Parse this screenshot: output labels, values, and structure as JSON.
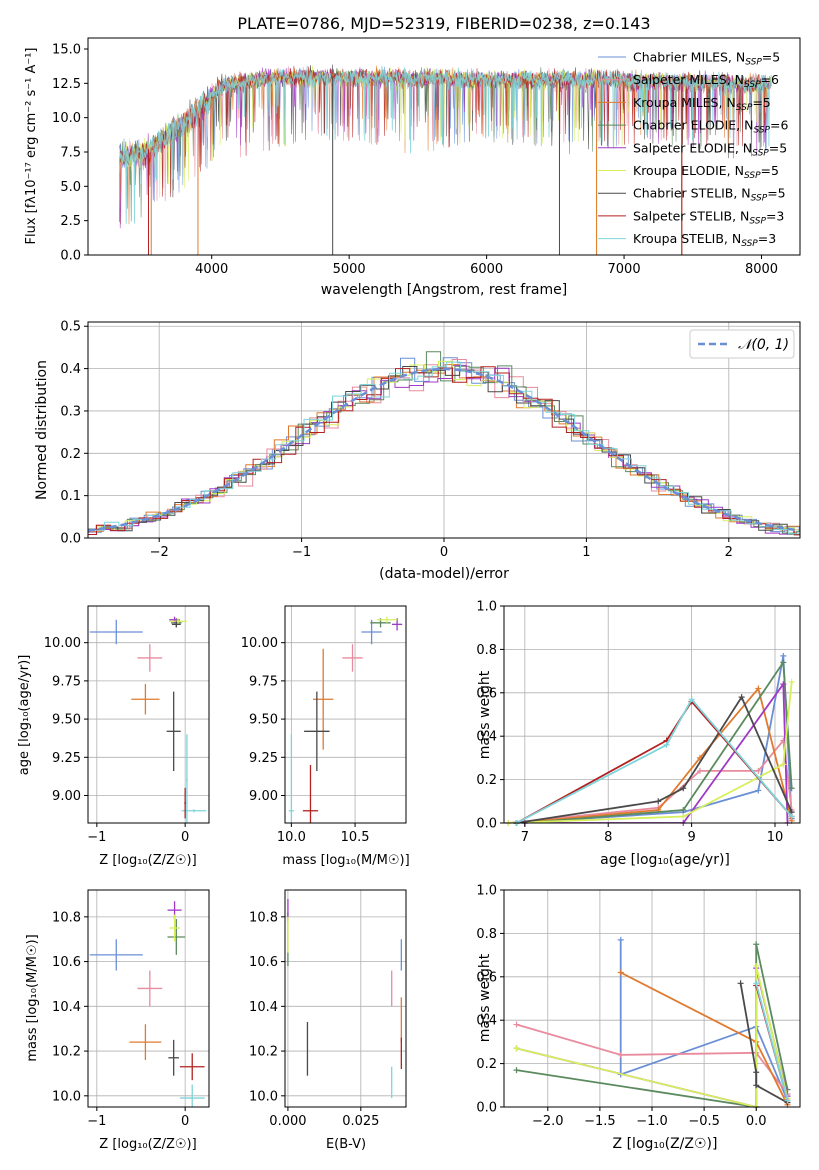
{
  "chart_data": [
    {
      "id": "spectrum",
      "type": "line",
      "title": "PLATE=0786, MJD=52319, FIBERID=0238, z=0.143",
      "xlabel": "wavelength [Angstrom, rest frame]",
      "ylabel": "Flux [fλ10⁻¹⁷ erg cm⁻² s⁻¹ A⁻¹]",
      "xlim": [
        3100,
        8280
      ],
      "ylim": [
        0,
        15.8
      ],
      "xticks": [
        "4000",
        "5000",
        "6000",
        "7000",
        "8000"
      ],
      "yticks": [
        "0.0",
        "2.5",
        "5.0",
        "7.5",
        "10.0",
        "12.5",
        "15.0"
      ],
      "legend_position": "top-right",
      "grid": false,
      "continuum": [
        [
          3330,
          7.2
        ],
        [
          3500,
          7.4
        ],
        [
          3700,
          8.9
        ],
        [
          3900,
          10.5
        ],
        [
          4050,
          12.2
        ],
        [
          4300,
          12.8
        ],
        [
          4700,
          13.0
        ],
        [
          5300,
          12.9
        ],
        [
          6000,
          12.8
        ],
        [
          6700,
          12.8
        ],
        [
          7200,
          12.7
        ],
        [
          7800,
          12.5
        ],
        [
          8070,
          12.4
        ]
      ],
      "series": [
        {
          "name": "Chabrier MILES, N_SSP=5",
          "color": "#6b8fd6"
        },
        {
          "name": "Salpeter MILES, N_SSP=6",
          "color": "#e88b9e"
        },
        {
          "name": "Kroupa MILES, N_SSP=5",
          "color": "#e07a2e"
        },
        {
          "name": "Chabrier ELODIE, N_SSP=6",
          "color": "#5b8a5e"
        },
        {
          "name": "Salpeter ELODIE, N_SSP=5",
          "color": "#a03ac4"
        },
        {
          "name": "Kroupa ELODIE, N_SSP=5",
          "color": "#d6ef5c"
        },
        {
          "name": "Chabrier STELIB, N_SSP=5",
          "color": "#4a4a4a"
        },
        {
          "name": "Salpeter STELIB, N_SSP=3",
          "color": "#b32020"
        },
        {
          "name": "Kroupa STELIB, N_SSP=3",
          "color": "#7fd4da"
        }
      ]
    },
    {
      "id": "residuals",
      "type": "bar",
      "xlabel": "(data-model)/error",
      "ylabel": "Normed distribution",
      "xlim": [
        -2.5,
        2.5
      ],
      "ylim": [
        0,
        0.51
      ],
      "xticks": [
        "−2",
        "−1",
        "0",
        "1",
        "2"
      ],
      "yticks": [
        "0.0",
        "0.1",
        "0.2",
        "0.3",
        "0.4",
        "0.5"
      ],
      "legend_position": "top-right",
      "legend_label": "𝒩(0, 1)",
      "grid": true,
      "bin_width": 0.1
    },
    {
      "id": "age_vs_Z",
      "type": "scatter",
      "xlabel": "Z [log₁₀(Z/Z☉)]",
      "ylabel": "age  [log₁₀(age/yr)]",
      "xlim": [
        -1.1,
        0.27
      ],
      "ylim": [
        8.82,
        10.24
      ],
      "xticks": [
        "−1",
        "0"
      ],
      "yticks": [
        "9.00",
        "9.25",
        "9.50",
        "9.75",
        "10.00"
      ],
      "points": [
        {
          "x": -0.78,
          "y": 10.07,
          "ex": 0.3,
          "ey": 0.08,
          "color": "#6b8fd6"
        },
        {
          "x": -0.4,
          "y": 9.9,
          "ex": 0.14,
          "ey": 0.09,
          "color": "#e88b9e"
        },
        {
          "x": -0.45,
          "y": 9.63,
          "ex": 0.16,
          "ey": 0.1,
          "color": "#e07a2e"
        },
        {
          "x": -0.1,
          "y": 10.13,
          "ex": 0.06,
          "ey": 0.03,
          "color": "#5b8a5e"
        },
        {
          "x": -0.12,
          "y": 10.15,
          "ex": 0.06,
          "ey": 0.02,
          "color": "#a03ac4"
        },
        {
          "x": -0.08,
          "y": 10.14,
          "ex": 0.1,
          "ey": 0.02,
          "color": "#d6ef5c"
        },
        {
          "x": -0.13,
          "y": 9.42,
          "ex": 0.08,
          "ey": 0.26,
          "color": "#4a4a4a"
        },
        {
          "x": -0.1,
          "y": 10.12,
          "ex": 0.05,
          "ey": 0.02,
          "color": "#4a4a4a"
        },
        {
          "x": 0.02,
          "y": 9.1,
          "ex": 0.01,
          "ey": 0.3,
          "color": "#7fd4da"
        },
        {
          "x": 0.1,
          "y": 8.9,
          "ex": 0.14,
          "ey": 0.01,
          "color": "#7fd4da"
        },
        {
          "x": 0.0,
          "y": 8.95,
          "ex": 0.01,
          "ey": 0.1,
          "color": "#b32020"
        }
      ]
    },
    {
      "id": "age_vs_mass",
      "type": "scatter",
      "xlabel": "mass [log₁₀(M/M☉)]",
      "ylabel": "",
      "xlim": [
        9.95,
        10.9
      ],
      "ylim": [
        8.82,
        10.24
      ],
      "xticks": [
        "10.0",
        "10.5"
      ],
      "yticks": [
        "9.00",
        "9.25",
        "9.50",
        "9.75",
        "10.00"
      ],
      "points": [
        {
          "x": 10.63,
          "y": 10.07,
          "ex": 0.08,
          "ey": 0.08,
          "color": "#6b8fd6"
        },
        {
          "x": 10.48,
          "y": 9.9,
          "ex": 0.08,
          "ey": 0.09,
          "color": "#e88b9e"
        },
        {
          "x": 10.25,
          "y": 9.63,
          "ex": 0.08,
          "ey": 0.33,
          "color": "#e07a2e"
        },
        {
          "x": 10.7,
          "y": 10.13,
          "ex": 0.08,
          "ey": 0.03,
          "color": "#5b8a5e"
        },
        {
          "x": 10.83,
          "y": 10.12,
          "ex": 0.04,
          "ey": 0.04,
          "color": "#a03ac4"
        },
        {
          "x": 10.75,
          "y": 10.15,
          "ex": 0.08,
          "ey": 0.02,
          "color": "#d6ef5c"
        },
        {
          "x": 10.2,
          "y": 9.42,
          "ex": 0.1,
          "ey": 0.26,
          "color": "#4a4a4a"
        },
        {
          "x": 10.15,
          "y": 8.9,
          "ex": 0.06,
          "ey": 0.3,
          "color": "#b32020"
        },
        {
          "x": 10.0,
          "y": 8.9,
          "ex": 0.02,
          "ey": 0.5,
          "color": "#7fd4da"
        }
      ]
    },
    {
      "id": "weight_vs_age",
      "type": "line",
      "xlabel": "age  [log₁₀(age/yr)]",
      "ylabel": "mass weight",
      "xlim": [
        6.75,
        10.3
      ],
      "ylim": [
        0,
        1.0
      ],
      "xticks": [
        "7",
        "8",
        "9",
        "10"
      ],
      "yticks": [
        "0.0",
        "0.2",
        "0.4",
        "0.6",
        "0.8",
        "1.0"
      ],
      "grid": true,
      "series": [
        {
          "color": "#6b8fd6",
          "points": [
            [
              6.9,
              0.0
            ],
            [
              8.9,
              0.05
            ],
            [
              9.8,
              0.15
            ],
            [
              10.1,
              0.77
            ],
            [
              10.2,
              0.02
            ]
          ]
        },
        {
          "color": "#e88b9e",
          "points": [
            [
              6.8,
              0.0
            ],
            [
              8.6,
              0.07
            ],
            [
              9.1,
              0.24
            ],
            [
              9.8,
              0.24
            ],
            [
              10.1,
              0.38
            ],
            [
              10.2,
              0.06
            ]
          ]
        },
        {
          "color": "#e07a2e",
          "points": [
            [
              6.9,
              0.0
            ],
            [
              8.6,
              0.06
            ],
            [
              9.1,
              0.3
            ],
            [
              9.8,
              0.62
            ],
            [
              10.2,
              0.01
            ]
          ]
        },
        {
          "color": "#5b8a5e",
          "points": [
            [
              7.0,
              0.0
            ],
            [
              8.9,
              0.06
            ],
            [
              10.1,
              0.74
            ],
            [
              10.2,
              0.16
            ]
          ]
        },
        {
          "color": "#a03ac4",
          "points": [
            [
              7.0,
              0.0
            ],
            [
              8.9,
              0.0
            ],
            [
              10.1,
              0.64
            ],
            [
              10.15,
              0.0
            ]
          ]
        },
        {
          "color": "#d6ef5c",
          "points": [
            [
              6.8,
              0.0
            ],
            [
              8.9,
              0.03
            ],
            [
              10.1,
              0.27
            ],
            [
              10.2,
              0.65
            ]
          ]
        },
        {
          "color": "#4a4a4a",
          "points": [
            [
              6.9,
              0.0
            ],
            [
              8.6,
              0.1
            ],
            [
              8.9,
              0.16
            ],
            [
              9.6,
              0.58
            ],
            [
              10.2,
              0.05
            ]
          ]
        },
        {
          "color": "#b32020",
          "points": [
            [
              6.9,
              0.0
            ],
            [
              8.7,
              0.38
            ],
            [
              9.0,
              0.56
            ],
            [
              10.2,
              0.03
            ]
          ]
        },
        {
          "color": "#7fd4da",
          "points": [
            [
              6.9,
              0.0
            ],
            [
              8.7,
              0.36
            ],
            [
              9.0,
              0.57
            ],
            [
              10.2,
              0.03
            ]
          ]
        }
      ]
    },
    {
      "id": "mass_vs_Z",
      "type": "scatter",
      "xlabel": "Z [log₁₀(Z/Z☉)]",
      "ylabel": "mass [log₁₀(M/M☉)]",
      "xlim": [
        -1.1,
        0.27
      ],
      "ylim": [
        9.95,
        10.92
      ],
      "xticks": [
        "−1",
        "0"
      ],
      "yticks": [
        "10.0",
        "10.2",
        "10.4",
        "10.6",
        "10.8"
      ],
      "points": [
        {
          "x": -0.78,
          "y": 10.63,
          "ex": 0.3,
          "ey": 0.07,
          "color": "#6b8fd6"
        },
        {
          "x": -0.4,
          "y": 10.48,
          "ex": 0.14,
          "ey": 0.08,
          "color": "#e88b9e"
        },
        {
          "x": -0.45,
          "y": 10.24,
          "ex": 0.18,
          "ey": 0.08,
          "color": "#e07a2e"
        },
        {
          "x": -0.1,
          "y": 10.71,
          "ex": 0.1,
          "ey": 0.08,
          "color": "#5b8a5e"
        },
        {
          "x": -0.12,
          "y": 10.83,
          "ex": 0.08,
          "ey": 0.04,
          "color": "#a03ac4"
        },
        {
          "x": -0.12,
          "y": 10.75,
          "ex": 0.06,
          "ey": 0.06,
          "color": "#d6ef5c"
        },
        {
          "x": -0.13,
          "y": 10.17,
          "ex": 0.06,
          "ey": 0.08,
          "color": "#4a4a4a"
        },
        {
          "x": 0.08,
          "y": 10.13,
          "ex": 0.14,
          "ey": 0.06,
          "color": "#b32020"
        },
        {
          "x": 0.08,
          "y": 9.99,
          "ex": 0.14,
          "ey": 0.06,
          "color": "#7fd4da"
        }
      ]
    },
    {
      "id": "mass_vs_ebv",
      "type": "scatter",
      "xlabel": "E(B-V)",
      "ylabel": "",
      "xlim": [
        -0.001,
        0.0405
      ],
      "ylim": [
        9.95,
        10.92
      ],
      "xticks": [
        "0.000",
        "0.025"
      ],
      "yticks": [
        "10.0",
        "10.2",
        "10.4",
        "10.6",
        "10.8"
      ],
      "points": [
        {
          "x": 0.0389,
          "y": 10.63,
          "ex": 0.0,
          "ey": 0.07,
          "color": "#6b8fd6"
        },
        {
          "x": 0.0356,
          "y": 10.48,
          "ex": 0.0,
          "ey": 0.08,
          "color": "#e88b9e"
        },
        {
          "x": 0.0389,
          "y": 10.34,
          "ex": 0.0,
          "ey": 0.1,
          "color": "#e07a2e"
        },
        {
          "x": 0.0,
          "y": 10.7,
          "ex": 0.0,
          "ey": 0.12,
          "color": "#5b8a5e"
        },
        {
          "x": 0.0,
          "y": 10.83,
          "ex": 0.0,
          "ey": 0.05,
          "color": "#a03ac4"
        },
        {
          "x": 0.0,
          "y": 10.72,
          "ex": 0.0,
          "ey": 0.08,
          "color": "#d6ef5c"
        },
        {
          "x": 0.0067,
          "y": 10.21,
          "ex": 0.0,
          "ey": 0.12,
          "color": "#4a4a4a"
        },
        {
          "x": 0.0389,
          "y": 10.19,
          "ex": 0.0,
          "ey": 0.07,
          "color": "#b32020"
        },
        {
          "x": 0.0356,
          "y": 10.06,
          "ex": 0.0,
          "ey": 0.07,
          "color": "#7fd4da"
        }
      ]
    },
    {
      "id": "weight_vs_Z",
      "type": "line",
      "xlabel": "Z [log₁₀(Z/Z☉)]",
      "ylabel": "mass weight",
      "xlim": [
        -2.42,
        0.42
      ],
      "ylim": [
        0,
        1.0
      ],
      "xticks": [
        "−2.0",
        "−1.5",
        "−1.0",
        "−0.5",
        "0.0"
      ],
      "yticks": [
        "0.0",
        "0.2",
        "0.4",
        "0.6",
        "0.8",
        "1.0"
      ],
      "grid": true,
      "series": [
        {
          "color": "#6b8fd6",
          "points": [
            [
              -1.3,
              0.77
            ],
            [
              -1.3,
              0.15
            ],
            [
              0.0,
              0.37
            ],
            [
              0.3,
              0.03
            ]
          ]
        },
        {
          "color": "#e88b9e",
          "points": [
            [
              -2.3,
              0.38
            ],
            [
              -1.3,
              0.24
            ],
            [
              0.0,
              0.25
            ],
            [
              0.3,
              0.06
            ]
          ]
        },
        {
          "color": "#e07a2e",
          "points": [
            [
              -1.3,
              0.62
            ],
            [
              0.0,
              0.3
            ],
            [
              0.3,
              0.01
            ]
          ]
        },
        {
          "color": "#5b8a5e",
          "points": [
            [
              -2.3,
              0.17
            ],
            [
              0.0,
              0.0
            ],
            [
              0.0,
              0.75
            ],
            [
              0.3,
              0.08
            ]
          ]
        },
        {
          "color": "#a03ac4",
          "points": [
            [
              -2.3,
              0.27
            ],
            [
              0.0,
              0.0
            ],
            [
              0.0,
              0.64
            ],
            [
              0.3,
              0.05
            ]
          ]
        },
        {
          "color": "#d6ef5c",
          "points": [
            [
              -2.3,
              0.27
            ],
            [
              0.0,
              0.0
            ],
            [
              0.0,
              0.65
            ],
            [
              0.3,
              0.04
            ]
          ]
        },
        {
          "color": "#4a4a4a",
          "points": [
            [
              -0.15,
              0.57
            ],
            [
              0.0,
              0.16
            ],
            [
              0.0,
              0.1
            ],
            [
              0.3,
              0.02
            ]
          ]
        },
        {
          "color": "#b32020",
          "points": [
            [
              0.0,
              0.56
            ],
            [
              0.3,
              0.03
            ]
          ]
        },
        {
          "color": "#7fd4da",
          "points": [
            [
              0.0,
              0.57
            ],
            [
              0.3,
              0.03
            ]
          ]
        }
      ]
    }
  ]
}
